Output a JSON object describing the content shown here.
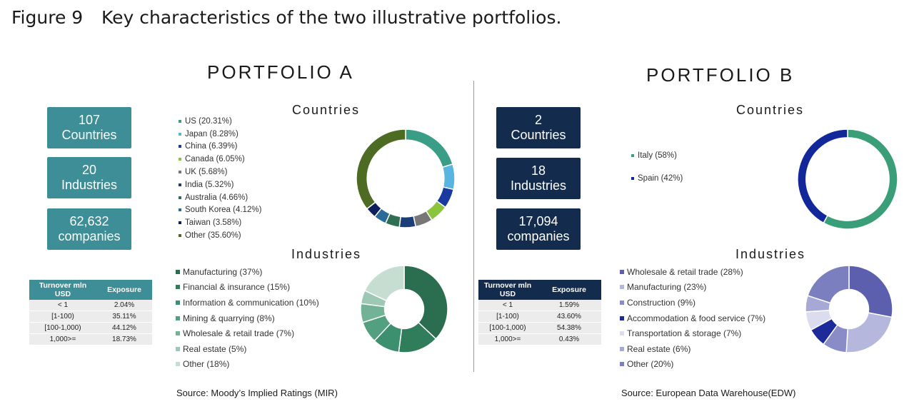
{
  "figure": {
    "number": "Figure 9",
    "caption": "Key characteristics of the two illustrative portfolios."
  },
  "portfolio_a": {
    "title": "PORTFOLIO A",
    "boxes": [
      {
        "value": "107",
        "label": "Countries"
      },
      {
        "value": "20",
        "label": "Industries"
      },
      {
        "value": "62,632",
        "label": "companies"
      }
    ],
    "countries_heading": "Countries",
    "industries_heading": "Industries",
    "table": {
      "headers": [
        "Turnover mln USD",
        "Exposure"
      ],
      "rows": [
        [
          "< 1",
          "2.04%"
        ],
        [
          "[1-100)",
          "35.11%"
        ],
        [
          "[100-1,000)",
          "44.12%"
        ],
        [
          "1,000>=",
          "18.73%"
        ]
      ]
    },
    "source": "Source: Moody’s Implied Ratings (MIR)"
  },
  "portfolio_b": {
    "title": "PORTFOLIO B",
    "boxes": [
      {
        "value": "2",
        "label": "Countries"
      },
      {
        "value": "18",
        "label": "Industries"
      },
      {
        "value": "17,094",
        "label": "companies"
      }
    ],
    "countries_heading": "Countries",
    "industries_heading": "Industries",
    "table": {
      "headers": [
        "Turnover mln USD",
        "Exposure"
      ],
      "rows": [
        [
          "< 1",
          "1.59%"
        ],
        [
          "[1-100)",
          "43.60%"
        ],
        [
          "[100-1,000)",
          "54.38%"
        ],
        [
          "1,000>=",
          "0.43%"
        ]
      ]
    },
    "source": "Source: European Data Warehouse(EDW)"
  },
  "chart_data": [
    {
      "type": "pie",
      "title": "Countries",
      "portfolio": "PORTFOLIO A",
      "labels": [
        "US (20.31%)",
        "Japan (8.28%)",
        "China (6.39%)",
        "Canada (6.05%)",
        "UK (5.68%)",
        "India (5.32%)",
        "Australia (4.66%)",
        "South Korea (4.12%)",
        "Taiwan (3.58%)",
        "Other (35.60%)"
      ],
      "values": [
        20.31,
        8.28,
        6.39,
        6.05,
        5.68,
        5.32,
        4.66,
        4.12,
        3.58,
        35.6
      ],
      "colors": [
        "#3a9e86",
        "#59b4e0",
        "#1a3aa0",
        "#8cc43e",
        "#777777",
        "#1b3e78",
        "#2e6e52",
        "#2a6b9a",
        "#0f1f5c",
        "#4d6b22"
      ],
      "hole": 0.78,
      "legend": "left"
    },
    {
      "type": "pie",
      "title": "Industries",
      "portfolio": "PORTFOLIO A",
      "labels": [
        "Manufacturing (37%)",
        "Financial & insurance (15%)",
        "Information & communication (10%)",
        "Mining & quarrying (8%)",
        "Wholesale & retail trade (7%)",
        "Real estate (5%)",
        "Other (18%)"
      ],
      "values": [
        37,
        15,
        10,
        8,
        7,
        5,
        18
      ],
      "colors": [
        "#2a6e4f",
        "#2f7d5a",
        "#3c9070",
        "#52a07e",
        "#72b395",
        "#9cc8b4",
        "#c6ddd2"
      ],
      "hole": 0.45,
      "legend": "left"
    },
    {
      "type": "pie",
      "title": "Countries",
      "portfolio": "PORTFOLIO B",
      "labels": [
        "Italy (58%)",
        "Spain (42%)"
      ],
      "values": [
        58,
        42
      ],
      "colors": [
        "#3a9e78",
        "#12289a"
      ],
      "hole": 0.83,
      "legend": "left"
    },
    {
      "type": "pie",
      "title": "Industries",
      "portfolio": "PORTFOLIO B",
      "labels": [
        "Wholesale & retail trade (28%)",
        "Manufacturing (23%)",
        "Construction (9%)",
        "Accommodation & food service (7%)",
        "Transportation & storage (7%)",
        "Real estate (6%)",
        "Other (20%)"
      ],
      "values": [
        28,
        23,
        9,
        7,
        7,
        6,
        20
      ],
      "colors": [
        "#5b5fae",
        "#b5b7dc",
        "#8a8cc8",
        "#1c2a9a",
        "#dcdcef",
        "#a6a8d6",
        "#7b7fc0"
      ],
      "hole": 0.45,
      "legend": "left"
    }
  ]
}
